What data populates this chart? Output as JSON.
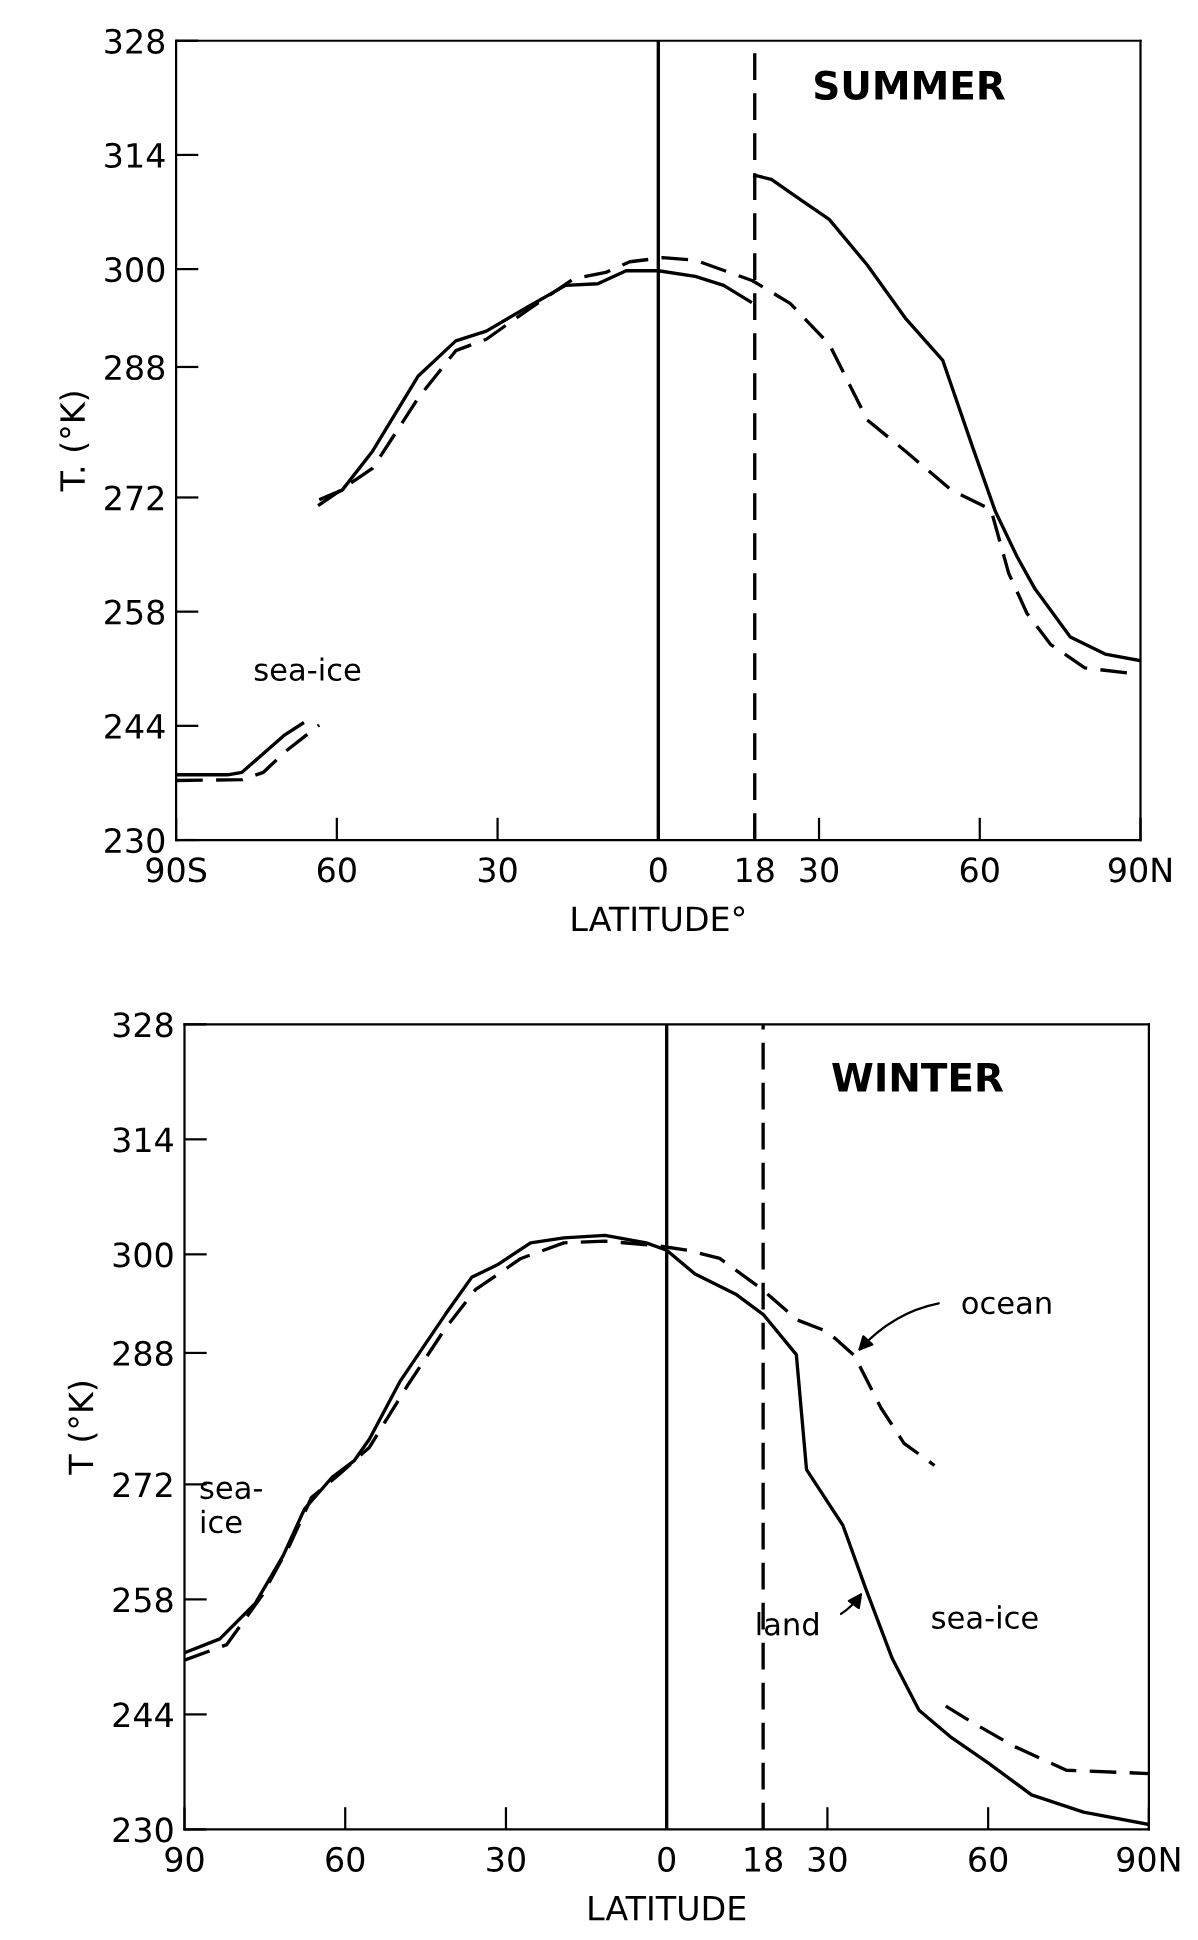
{
  "chart_data": [
    {
      "type": "line",
      "ylabel": "T. (°K)",
      "xlabel": "LATITUDE°",
      "annotations": [
        "SUMMER",
        "sea-ice"
      ],
      "xlim": [
        -90,
        90
      ],
      "xticks": [
        {
          "value": -90,
          "label": "90S"
        },
        {
          "value": -60,
          "label": "60"
        },
        {
          "value": -30,
          "label": "30"
        },
        0,
        18,
        {
          "value": 30,
          "label": "30"
        },
        {
          "value": 60,
          "label": "60"
        },
        {
          "value": 90,
          "label": "90N"
        }
      ],
      "ylim": [
        230,
        328
      ],
      "yticks": [
        230,
        244,
        258,
        272,
        288,
        300,
        314,
        328
      ],
      "grid": false,
      "legend": false,
      "ref_lines": [
        {
          "axis": "x",
          "value": 0,
          "line_style": "solid",
          "color": "#000000"
        },
        {
          "axis": "x",
          "value": 18,
          "line_style": "dashed",
          "color": "#000000"
        }
      ],
      "series": [
        {
          "color": "#000000",
          "line_style": "solid",
          "x": [
            -63,
            -59,
            -53.3,
            -44.8,
            -37.8,
            -32.1,
            -24.8,
            -17.3,
            -11.3,
            -6,
            0,
            6.9,
            12.2,
            17.2
          ],
          "values": [
            271.8,
            272.9,
            277.7,
            286.9,
            291.2,
            292.4,
            295.2,
            298,
            298.2,
            299.8,
            299.8,
            299.1,
            298,
            296
          ]
        },
        {
          "color": "#000000",
          "line_style": "solid",
          "x": [
            18,
            21.1,
            26.8,
            31.9,
            39,
            46.1,
            53.1,
            58.6,
            62.9,
            67,
            70.3,
            76.9,
            83.4,
            90
          ],
          "values": [
            311.5,
            311,
            308.4,
            306.1,
            300.5,
            294,
            288.8,
            278.3,
            270.3,
            264.7,
            260.8,
            254.9,
            252.8,
            252
          ]
        },
        {
          "color": "#000000",
          "line_style": "dashed",
          "x": [
            -63.5,
            -53.3,
            -44.8,
            -37.8,
            -32.1,
            -24.8,
            -15.8,
            -9.8,
            -5.3,
            0.8,
            6.9,
            17.5,
            24.6,
            31.9,
            39,
            46.1,
            54.7,
            62.1,
            65.4,
            68.8,
            73.2,
            79.6,
            90
          ],
          "values": [
            271,
            275.6,
            284.2,
            290,
            291.4,
            294.8,
            298.8,
            299.6,
            300.9,
            301.4,
            301.1,
            298.6,
            295.8,
            290.8,
            281.5,
            277.7,
            272.9,
            270.5,
            262.7,
            257.8,
            254,
            251.1,
            250.3
          ]
        },
        {
          "color": "#000000",
          "line_style": "solid",
          "x": [
            -90,
            -80.4,
            -77.7,
            -73.7,
            -69.7,
            -66.4
          ],
          "values": [
            238,
            238,
            238.3,
            240.6,
            242.9,
            244.3
          ]
        },
        {
          "color": "#000000",
          "line_style": "dashed",
          "x": [
            -90,
            -77.7,
            -73.7,
            -69.7,
            -63.3
          ],
          "values": [
            237.3,
            237.4,
            238.3,
            240.8,
            244.1
          ]
        }
      ]
    },
    {
      "type": "line",
      "ylabel": "T (°K)",
      "xlabel": "LATITUDE",
      "annotations": [
        "WINTER",
        {
          "text": "ocean",
          "x": 35,
          "y": 287.7
        },
        {
          "text": "land",
          "x": 37.1,
          "y": 259.4
        },
        "sea-\nice",
        "sea-ice"
      ],
      "xlim": [
        -90,
        90
      ],
      "xticks": [
        {
          "value": -90,
          "label": "90"
        },
        {
          "value": -60,
          "label": "60"
        },
        {
          "value": -30,
          "label": "30"
        },
        0,
        18,
        {
          "value": 30,
          "label": "30"
        },
        {
          "value": 60,
          "label": "60"
        },
        {
          "value": 90,
          "label": "90N"
        }
      ],
      "ylim": [
        230,
        328
      ],
      "yticks": [
        230,
        244,
        258,
        272,
        288,
        300,
        314,
        328
      ],
      "grid": false,
      "legend": false,
      "ref_lines": [
        {
          "axis": "x",
          "value": 0,
          "line_style": "solid",
          "color": "#000000"
        },
        {
          "axis": "x",
          "value": 18,
          "line_style": "dashed",
          "color": "#000000"
        }
      ],
      "series": [
        {
          "color": "#000000",
          "line_style": "solid",
          "x": [
            -90,
            -83.4,
            -76.8,
            -71.6,
            -67.6,
            -62.4,
            -58.3,
            -55.5,
            -49.8,
            -41.3,
            -36.4,
            -31.4,
            -25.4,
            -19.2,
            -11.5,
            -3.8,
            0,
            5.3,
            13,
            18,
            24.2,
            26.1,
            32.9,
            37.1,
            42.1,
            47.1,
            52.9,
            60,
            68.1,
            77.8,
            90
          ],
          "values": [
            251.5,
            253.2,
            257.5,
            263.3,
            269,
            272.9,
            274.9,
            277.5,
            284.5,
            292.7,
            297.2,
            298.8,
            301.4,
            302,
            302.3,
            301.4,
            300.5,
            297.6,
            295.1,
            292.7,
            287.8,
            273.8,
            267,
            259.4,
            250.8,
            244.5,
            241.3,
            238.1,
            234.2,
            232.1,
            230.6
          ]
        },
        {
          "color": "#000000",
          "line_style": "dashed",
          "x": [
            -90,
            -82.1,
            -75.5,
            -70.3,
            -66.3,
            -61,
            -55.5,
            -48.4,
            -41.3,
            -35.7,
            -27.2,
            -19.2,
            -11.5,
            -2.3,
            3.8,
            9.9,
            17.5,
            24.4,
            30,
            35,
            40,
            44.3,
            50
          ],
          "values": [
            250.6,
            252.5,
            258.5,
            264.7,
            270.4,
            273.3,
            276.5,
            284,
            291,
            295.7,
            299.5,
            301.4,
            301.6,
            301.1,
            300.5,
            299.5,
            295.9,
            292,
            290.6,
            287.7,
            281.3,
            277,
            274.3
          ]
        },
        {
          "color": "#000000",
          "line_style": "dashed",
          "x": [
            52.1,
            57.1,
            64.9,
            74.6,
            90
          ],
          "values": [
            245,
            243,
            240.1,
            237.2,
            236.8
          ]
        }
      ]
    }
  ]
}
